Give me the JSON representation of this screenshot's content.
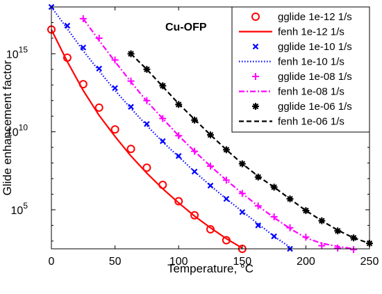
{
  "chart_data": {
    "type": "scatter",
    "title": "",
    "annotation": "Cu-OFP",
    "xlabel": "Temperature, °C",
    "ylabel": "Glide enhancement factor",
    "xlim": [
      0,
      250
    ],
    "ylim_log10": [
      2.5,
      18
    ],
    "yscale": "log",
    "x_ticks": [
      "0",
      "50",
      "100",
      "150",
      "200",
      "250"
    ],
    "y_ticks": [
      {
        "base": "10",
        "exp": "5",
        "log10": 5
      },
      {
        "base": "10",
        "exp": "10",
        "log10": 10
      },
      {
        "base": "10",
        "exp": "15",
        "log10": 15
      }
    ],
    "grid": false,
    "legend_position": "top-right",
    "series": [
      {
        "name": "gglide 1e-12 1/s",
        "kind": "marker",
        "marker": "circle",
        "color": "#ff0000",
        "x": [
          0,
          12.5,
          25,
          37.5,
          50,
          62.5,
          75,
          87.5,
          100,
          112.5,
          125,
          137.5,
          150
        ],
        "y_log10": [
          16.55,
          14.75,
          13.05,
          11.55,
          10.15,
          8.9,
          7.7,
          6.6,
          5.55,
          4.65,
          3.75,
          3.05,
          2.5
        ]
      },
      {
        "name": "fenh 1e-12 1/s",
        "kind": "line",
        "dash": "solid",
        "color": "#ff0000",
        "x": [
          0,
          12.5,
          25,
          37.5,
          50,
          62.5,
          75,
          87.5,
          100,
          112.5,
          125,
          137.5,
          150
        ],
        "y_log10": [
          16.55,
          14.5,
          12.65,
          11.05,
          9.7,
          8.45,
          7.35,
          6.35,
          5.45,
          4.6,
          3.85,
          3.15,
          2.55
        ]
      },
      {
        "name": "gglide 1e-10 1/s",
        "kind": "marker",
        "marker": "x",
        "color": "#0000ff",
        "x": [
          0,
          12.5,
          25,
          37.5,
          50,
          62.5,
          75,
          87.5,
          100,
          112.5,
          125,
          137.5,
          150,
          162.5,
          175,
          187.5
        ],
        "y_log10": [
          18,
          16.8,
          15.4,
          14.05,
          12.8,
          11.6,
          10.5,
          9.4,
          8.45,
          7.45,
          6.55,
          5.7,
          4.85,
          4.0,
          3.3,
          2.5
        ]
      },
      {
        "name": "fenh 1e-10 1/s",
        "kind": "line",
        "dash": "dotted",
        "color": "#0000ff",
        "x": [
          0,
          12.5,
          25,
          37.5,
          50,
          62.5,
          75,
          87.5,
          100,
          112.5,
          125,
          137.5,
          150,
          162.5,
          175,
          187.5
        ],
        "y_log10": [
          18,
          16.6,
          15.2,
          13.9,
          12.65,
          11.5,
          10.4,
          9.35,
          8.4,
          7.45,
          6.55,
          5.7,
          4.9,
          4.1,
          3.3,
          2.6
        ]
      },
      {
        "name": "gglide 1e-08 1/s",
        "kind": "marker",
        "marker": "plus",
        "color": "#ff00ff",
        "x": [
          25,
          37.5,
          50,
          62.5,
          75,
          87.5,
          100,
          112.5,
          125,
          137.5,
          150,
          162.5,
          175,
          187.5,
          200,
          212.5,
          225,
          237.5
        ],
        "y_log10": [
          17.25,
          16.0,
          14.6,
          13.25,
          12.0,
          10.85,
          9.75,
          8.75,
          7.8,
          6.9,
          6.05,
          5.25,
          4.55,
          3.85,
          3.25,
          2.7,
          2.55,
          2.45
        ]
      },
      {
        "name": "fenh 1e-08 1/s",
        "kind": "line",
        "dash": "dashdot",
        "color": "#ff00ff",
        "x": [
          25,
          37.5,
          50,
          62.5,
          75,
          87.5,
          100,
          112.5,
          125,
          137.5,
          150,
          162.5,
          175,
          187.5,
          200,
          212.5,
          225,
          237.5
        ],
        "y_log10": [
          17.25,
          15.85,
          14.5,
          13.2,
          11.95,
          10.85,
          9.75,
          8.75,
          7.8,
          6.9,
          6.05,
          5.25,
          4.5,
          3.8,
          3.2,
          2.85,
          2.65,
          2.5
        ]
      },
      {
        "name": "gglide 1e-06 1/s",
        "kind": "marker",
        "marker": "star",
        "color": "#000000",
        "x": [
          62.5,
          75,
          87.5,
          100,
          112.5,
          125,
          137.5,
          150,
          162.5,
          175,
          187.5,
          200,
          212.5,
          225,
          237.5,
          250
        ],
        "y_log10": [
          15.0,
          14.0,
          12.95,
          11.75,
          10.75,
          9.8,
          8.85,
          7.95,
          7.1,
          6.45,
          5.7,
          4.95,
          4.3,
          3.65,
          3.2,
          2.85
        ]
      },
      {
        "name": "fenh 1e-06 1/s",
        "kind": "line",
        "dash": "dashed",
        "color": "#000000",
        "x": [
          62.5,
          75,
          87.5,
          100,
          112.5,
          125,
          137.5,
          150,
          162.5,
          175,
          187.5,
          200,
          212.5,
          225,
          237.5,
          250
        ],
        "y_log10": [
          15.0,
          14.0,
          12.9,
          11.8,
          10.8,
          9.8,
          8.85,
          7.95,
          7.15,
          6.45,
          5.7,
          4.95,
          4.3,
          3.7,
          3.2,
          2.85
        ]
      }
    ]
  }
}
